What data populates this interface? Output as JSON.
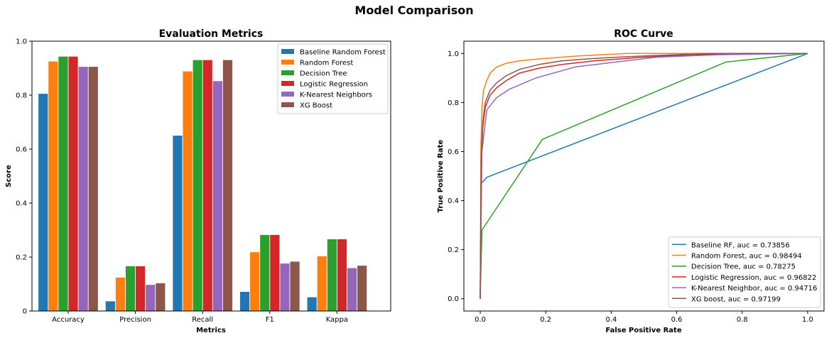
{
  "figure_title": "Model Comparison",
  "chart_data": [
    {
      "type": "bar",
      "title": "Evaluation Metrics",
      "xlabel": "Metrics",
      "ylabel": "Score",
      "ylim": [
        0,
        1.0
      ],
      "yticks": [
        "0",
        "0.2",
        "0.4",
        "0.6",
        "0.8",
        "1.0"
      ],
      "categories": [
        "Accuracy",
        "Precision",
        "Recall",
        "F1",
        "Kappa"
      ],
      "legend_position": "top-right",
      "series": [
        {
          "name": "Baseline Random Forest",
          "color": "#1f77b4",
          "values": [
            0.805,
            0.036,
            0.65,
            0.071,
            0.051
          ]
        },
        {
          "name": "Random Forest",
          "color": "#ff7f0e",
          "values": [
            0.925,
            0.124,
            0.888,
            0.218,
            0.203
          ]
        },
        {
          "name": "Decision Tree",
          "color": "#2ca02c",
          "values": [
            0.943,
            0.166,
            0.93,
            0.282,
            0.266
          ]
        },
        {
          "name": "Logistic Regression",
          "color": "#d62728",
          "values": [
            0.943,
            0.166,
            0.93,
            0.282,
            0.266
          ]
        },
        {
          "name": "K-Nearest Neighbors",
          "color": "#9467bd",
          "values": [
            0.905,
            0.097,
            0.852,
            0.176,
            0.159
          ]
        },
        {
          "name": "XG Boost",
          "color": "#8c564b",
          "values": [
            0.905,
            0.103,
            0.93,
            0.183,
            0.168
          ]
        }
      ]
    },
    {
      "type": "line",
      "title": "ROC Curve",
      "xlabel": "False Positive Rate",
      "ylabel": "True Positive Rate",
      "xlim": [
        -0.05,
        1.05
      ],
      "ylim": [
        -0.05,
        1.05
      ],
      "xticks": [
        "0.0",
        "0.2",
        "0.4",
        "0.6",
        "0.8",
        "1.0"
      ],
      "yticks": [
        "0.0",
        "0.2",
        "0.4",
        "0.6",
        "0.8",
        "1.0"
      ],
      "legend_position": "bottom-right",
      "series": [
        {
          "name": "Baseline RF, auc = 0.73856",
          "color": "#1f77b4",
          "x": [
            0,
            0.003,
            0.02,
            1.0
          ],
          "y": [
            0,
            0.47,
            0.495,
            1.0
          ]
        },
        {
          "name": "Random Forest, auc = 0.98494",
          "color": "#ff7f0e",
          "x": [
            0,
            0.002,
            0.005,
            0.01,
            0.02,
            0.03,
            0.05,
            0.08,
            0.12,
            0.2,
            0.3,
            0.45,
            0.6,
            1.0
          ],
          "y": [
            0,
            0.62,
            0.78,
            0.85,
            0.89,
            0.92,
            0.945,
            0.96,
            0.97,
            0.98,
            0.99,
            1.0,
            1.0,
            1.0
          ]
        },
        {
          "name": "Decision Tree, auc = 0.78275",
          "color": "#2ca02c",
          "x": [
            0,
            0.005,
            0.19,
            0.75,
            1.0
          ],
          "y": [
            0,
            0.28,
            0.65,
            0.965,
            1.0
          ]
        },
        {
          "name": "Logistic Regression, auc = 0.96822",
          "color": "#d62728",
          "x": [
            0,
            0.003,
            0.008,
            0.015,
            0.03,
            0.05,
            0.08,
            0.12,
            0.18,
            0.25,
            0.35,
            0.5,
            0.65,
            0.8,
            1.0
          ],
          "y": [
            0,
            0.55,
            0.7,
            0.78,
            0.83,
            0.86,
            0.89,
            0.92,
            0.94,
            0.955,
            0.97,
            0.985,
            0.995,
            1.0,
            1.0
          ]
        },
        {
          "name": "K-Nearest Neighbor, auc = 0.94716",
          "color": "#9467bd",
          "x": [
            0,
            0.005,
            0.02,
            0.05,
            0.09,
            0.17,
            0.29,
            0.54,
            0.73,
            1.0
          ],
          "y": [
            0,
            0.6,
            0.77,
            0.82,
            0.855,
            0.9,
            0.945,
            0.985,
            0.995,
            1.0
          ]
        },
        {
          "name": "XG boost, auc = 0.97199",
          "color": "#8c564b",
          "x": [
            0,
            0.003,
            0.008,
            0.015,
            0.03,
            0.05,
            0.08,
            0.12,
            0.18,
            0.25,
            0.35,
            0.5,
            0.7,
            1.0
          ],
          "y": [
            0,
            0.58,
            0.72,
            0.8,
            0.85,
            0.88,
            0.91,
            0.935,
            0.955,
            0.97,
            0.98,
            0.99,
            1.0,
            1.0
          ]
        }
      ]
    }
  ]
}
